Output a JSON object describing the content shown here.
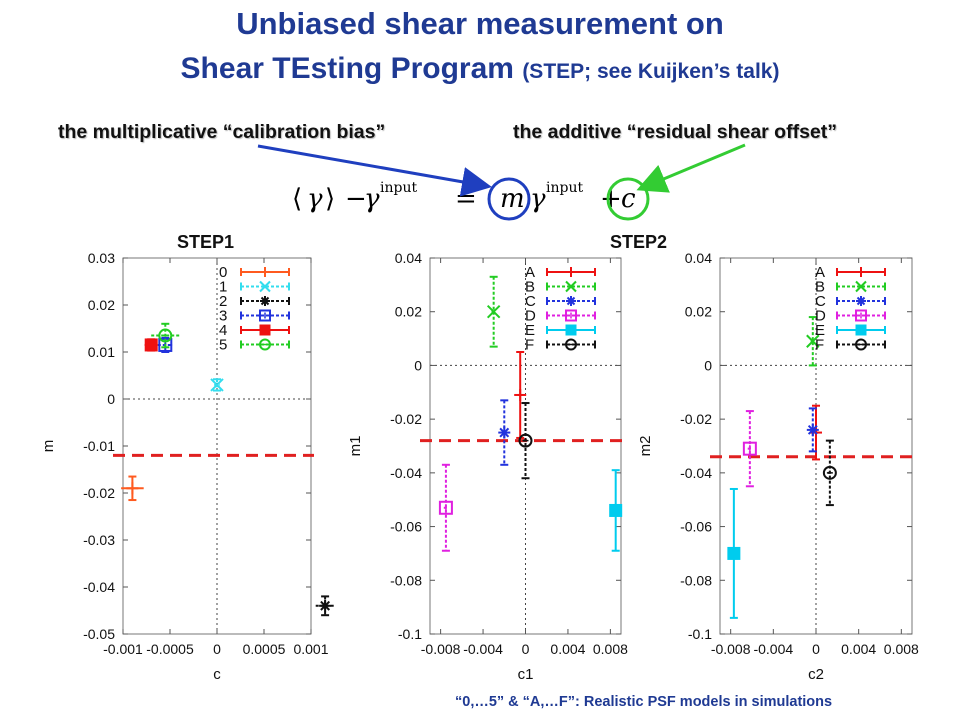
{
  "title_line1": "Unbiased shear measurement on",
  "title_line2_main": "Shear TEsting Program",
  "title_line2_small": "(STEP; see Kuijken’s talk)",
  "annotation_left": "the multiplicative “calibration bias”",
  "annotation_right": "the additive “residual shear offset”",
  "equation": {
    "lhs_bracket_open": "⟨",
    "gamma": "γ",
    "lhs_bracket_close": "⟩",
    "minus": "−",
    "sup_input": "input",
    "equals": "=",
    "m": "m",
    "plus": "+",
    "c": "c"
  },
  "step1_label": "STEP1",
  "step2_label": "STEP2",
  "footer": "“0,…5” & “A,…F”:  Realistic PSF models in simulations",
  "colors": {
    "title": "#1f3a93",
    "arrow_blue": "#1f3fbf",
    "arrow_green": "#33cc33",
    "dashed_bias": "#e02020"
  },
  "chart_data": [
    {
      "type": "scatter",
      "xlabel": "c",
      "ylabel": "m",
      "xlim": [
        -0.001,
        0.001
      ],
      "ylim": [
        -0.05,
        0.03
      ],
      "xticks": [
        "-0.001",
        "-0.0005",
        "0",
        "0.0005",
        "0.001"
      ],
      "yticks": [
        "-0.05",
        "-0.04",
        "-0.03",
        "-0.02",
        "-0.01",
        "0",
        "0.01",
        "0.02",
        "0.03"
      ],
      "hline": -0.012,
      "legend": "top-right",
      "series": [
        {
          "name": "0",
          "color": "#ff5a1f",
          "marker": "plus",
          "x": -0.0009,
          "y": -0.019,
          "xerr": 0.00012,
          "yerr": 0.0025
        },
        {
          "name": "1",
          "color": "#33ddee",
          "marker": "x",
          "x": 0.0,
          "y": 0.003,
          "xerr": 3e-05,
          "yerr": 0.0012
        },
        {
          "name": "2",
          "color": "#111111",
          "marker": "star",
          "x": 0.00115,
          "y": -0.044,
          "xerr": 0.0001,
          "yerr": 0.002
        },
        {
          "name": "3",
          "color": "#2233dd",
          "marker": "square_open",
          "x": -0.00055,
          "y": 0.0115,
          "xerr": 8e-05,
          "yerr": 0.0015
        },
        {
          "name": "4",
          "color": "#ee1111",
          "marker": "square_filled",
          "x": -0.0007,
          "y": 0.0115,
          "xerr": 7e-05,
          "yerr": 0.0012
        },
        {
          "name": "5",
          "color": "#22cc22",
          "marker": "circle_open",
          "x": -0.00055,
          "y": 0.0135,
          "xerr": 0.00015,
          "yerr": 0.0025
        }
      ]
    },
    {
      "type": "scatter",
      "xlabel": "c1",
      "ylabel": "m1",
      "xlim": [
        -0.009,
        0.009
      ],
      "ylim": [
        -0.1,
        0.04
      ],
      "xticks": [
        "-0.008",
        "-0.004",
        "0",
        "0.004",
        "0.008"
      ],
      "yticks": [
        "-0.1",
        "-0.08",
        "-0.06",
        "-0.04",
        "-0.02",
        "0",
        "0.02",
        "0.04"
      ],
      "hline": -0.028,
      "legend": "top-right",
      "series": [
        {
          "name": "A",
          "color": "#ee1111",
          "marker": "plus",
          "x": -0.0005,
          "y": -0.011,
          "xerr": 0.0002,
          "yerr": 0.016
        },
        {
          "name": "B",
          "color": "#22cc22",
          "marker": "x",
          "x": -0.003,
          "y": 0.02,
          "xerr": 0.0002,
          "yerr": 0.013
        },
        {
          "name": "C",
          "color": "#2233dd",
          "marker": "star",
          "x": -0.002,
          "y": -0.025,
          "xerr": 0.0002,
          "yerr": 0.012
        },
        {
          "name": "D",
          "color": "#e020e0",
          "marker": "square_open",
          "x": -0.0075,
          "y": -0.053,
          "xerr": 0.0002,
          "yerr": 0.016
        },
        {
          "name": "E",
          "color": "#00ccee",
          "marker": "square_filled",
          "x": 0.0085,
          "y": -0.054,
          "xerr": 0.0002,
          "yerr": 0.015
        },
        {
          "name": "F",
          "color": "#111111",
          "marker": "circle_open",
          "x": 0.0,
          "y": -0.028,
          "xerr": 0.0002,
          "yerr": 0.014
        }
      ]
    },
    {
      "type": "scatter",
      "xlabel": "c2",
      "ylabel": "m2",
      "xlim": [
        -0.009,
        0.009
      ],
      "ylim": [
        -0.1,
        0.04
      ],
      "xticks": [
        "-0.008",
        "-0.004",
        "0",
        "0.004",
        "0.008"
      ],
      "yticks": [
        "-0.1",
        "-0.08",
        "-0.06",
        "-0.04",
        "-0.02",
        "0",
        "0.02",
        "0.04"
      ],
      "hline": -0.034,
      "legend": "top-right",
      "series": [
        {
          "name": "A",
          "color": "#ee1111",
          "marker": "plus",
          "x": 0.0,
          "y": -0.025,
          "xerr": 0.0002,
          "yerr": 0.01
        },
        {
          "name": "B",
          "color": "#22cc22",
          "marker": "x",
          "x": -0.0003,
          "y": 0.009,
          "xerr": 0.0002,
          "yerr": 0.009
        },
        {
          "name": "C",
          "color": "#2233dd",
          "marker": "star",
          "x": -0.0003,
          "y": -0.024,
          "xerr": 0.0002,
          "yerr": 0.008
        },
        {
          "name": "D",
          "color": "#e020e0",
          "marker": "square_open",
          "x": -0.0062,
          "y": -0.031,
          "xerr": 0.0002,
          "yerr": 0.014
        },
        {
          "name": "E",
          "color": "#00ccee",
          "marker": "square_filled",
          "x": -0.0077,
          "y": -0.07,
          "xerr": 0.0002,
          "yerr": 0.024
        },
        {
          "name": "F",
          "color": "#111111",
          "marker": "circle_open",
          "x": 0.0013,
          "y": -0.04,
          "xerr": 0.0002,
          "yerr": 0.012
        }
      ]
    }
  ]
}
